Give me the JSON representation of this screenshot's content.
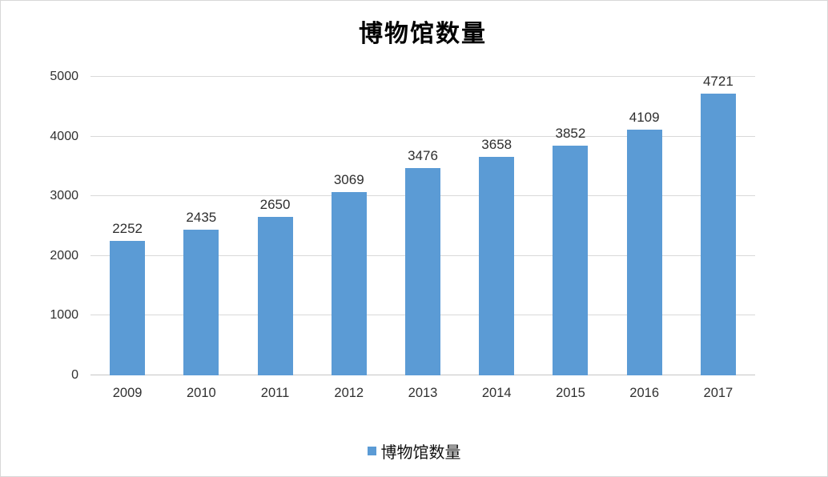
{
  "chart_data": {
    "type": "bar",
    "title": "博物馆数量",
    "series_name": "博物馆数量",
    "categories": [
      "2009",
      "2010",
      "2011",
      "2012",
      "2013",
      "2014",
      "2015",
      "2016",
      "2017"
    ],
    "values": [
      2252,
      2435,
      2650,
      3069,
      3476,
      3658,
      3852,
      4109,
      4721
    ],
    "data_labels_shown": true,
    "xlabel": "",
    "ylabel": "",
    "ylim": [
      0,
      5000
    ],
    "yticks": [
      0,
      1000,
      2000,
      3000,
      4000,
      5000
    ],
    "grid": true,
    "legend_position": "bottom",
    "colors": {
      "bar": "#5b9bd5",
      "gridline": "#d9d9d9",
      "axis_line": "#c6c6c6",
      "text": "#303030",
      "title": "#000000"
    }
  }
}
